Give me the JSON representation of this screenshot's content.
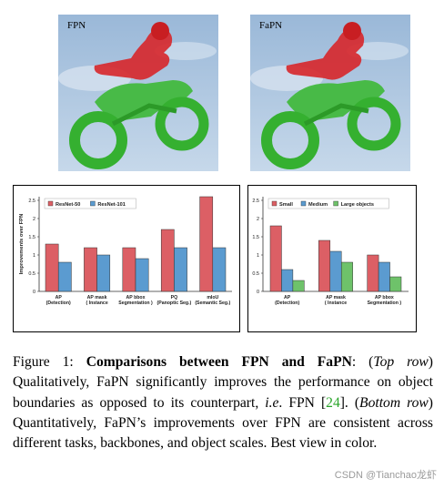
{
  "panels": [
    {
      "label": "FPN"
    },
    {
      "label": "FaPN"
    }
  ],
  "chart_data": [
    {
      "type": "bar",
      "ylabel": "Improvements over FPN",
      "ylim": [
        0,
        2.6
      ],
      "yticks": [
        "0",
        "0.5",
        "1",
        "1.5",
        "2",
        "2.5"
      ],
      "categories": [
        [
          "AP",
          "(Detection)"
        ],
        [
          "AP mask",
          "( Instance"
        ],
        [
          "AP bbox",
          "Segmentation )"
        ],
        [
          "PQ",
          "(Panoptic Seg.)"
        ],
        [
          "mIoU",
          "(Semantic Seg.)"
        ]
      ],
      "legend_position": "top-left",
      "series": [
        {
          "name": "ResNet-50",
          "color": "#dc5f65",
          "values": [
            1.3,
            1.2,
            1.2,
            1.7,
            2.6
          ]
        },
        {
          "name": "ResNet-101",
          "color": "#5b9bd0",
          "values": [
            0.8,
            1.0,
            0.9,
            1.2,
            1.2
          ]
        }
      ]
    },
    {
      "type": "bar",
      "ylabel": "",
      "ylim": [
        0,
        2.6
      ],
      "yticks": [
        "0",
        "0.5",
        "1",
        "1.5",
        "2",
        "2.5"
      ],
      "categories": [
        [
          "AP",
          "(Detection)"
        ],
        [
          "AP mask",
          "( Instance"
        ],
        [
          "AP bbox",
          "Segmentation )"
        ]
      ],
      "legend_position": "top-left",
      "series": [
        {
          "name": "Small",
          "color": "#dc5f65",
          "values": [
            1.8,
            1.4,
            1.0
          ]
        },
        {
          "name": "Medium",
          "color": "#5b9bd0",
          "values": [
            0.6,
            1.1,
            0.8
          ]
        },
        {
          "name": "Large objects",
          "color": "#6ec26a",
          "values": [
            0.3,
            0.8,
            0.4
          ]
        }
      ]
    }
  ],
  "caption": {
    "fig_label": "Figure 1:",
    "title": "Comparisons between FPN and FaPN",
    "part1": ": (",
    "top_row": "Top row",
    "part2": ") Qualitatively, FaPN significantly improves the performance on object boundaries as opposed to its counterpart, ",
    "ie": "i.e",
    "part3": ". FPN [",
    "ref": "24",
    "part4": "].  (",
    "bottom_row": "Bottom row",
    "part5": ") Quantitatively, FaPN’s improvements over FPN are consistent across different tasks, backbones, and object scales. Best view in color."
  },
  "watermark": "CSDN @Tianchao龙虾"
}
